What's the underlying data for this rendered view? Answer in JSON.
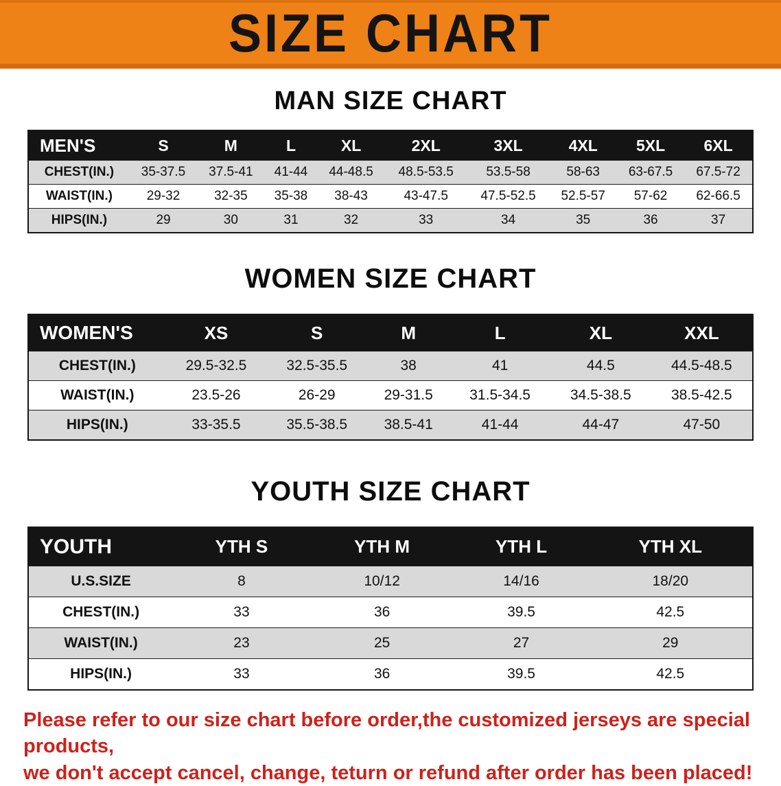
{
  "banner": {
    "title": "SIZE CHART",
    "background_color": "#ef8216",
    "text_color": "#141414"
  },
  "sections": [
    {
      "id": "men",
      "heading": "MAN SIZE CHART",
      "header": [
        "MEN'S",
        "S",
        "M",
        "L",
        "XL",
        "2XL",
        "3XL",
        "4XL",
        "5XL",
        "6XL"
      ],
      "rows": [
        [
          "CHEST(IN.)",
          "35-37.5",
          "37.5-41",
          "41-44",
          "44-48.5",
          "48.5-53.5",
          "53.5-58",
          "58-63",
          "63-67.5",
          "67.5-72"
        ],
        [
          "WAIST(IN.)",
          "29-32",
          "32-35",
          "35-38",
          "38-43",
          "43-47.5",
          "47.5-52.5",
          "52.5-57",
          "57-62",
          "62-66.5"
        ],
        [
          "HIPS(IN.)",
          "29",
          "30",
          "31",
          "32",
          "33",
          "34",
          "35",
          "36",
          "37"
        ]
      ]
    },
    {
      "id": "women",
      "heading": "WOMEN SIZE CHART",
      "header": [
        "WOMEN'S",
        "XS",
        "S",
        "M",
        "L",
        "XL",
        "XXL"
      ],
      "rows": [
        [
          "CHEST(IN.)",
          "29.5-32.5",
          "32.5-35.5",
          "38",
          "41",
          "44.5",
          "44.5-48.5"
        ],
        [
          "WAIST(IN.)",
          "23.5-26",
          "26-29",
          "29-31.5",
          "31.5-34.5",
          "34.5-38.5",
          "38.5-42.5"
        ],
        [
          "HIPS(IN.)",
          "33-35.5",
          "35.5-38.5",
          "38.5-41",
          "41-44",
          "44-47",
          "47-50"
        ]
      ]
    },
    {
      "id": "youth",
      "heading": "YOUTH SIZE CHART",
      "header": [
        "YOUTH",
        "YTH S",
        "YTH M",
        "YTH L",
        "YTH XL"
      ],
      "rows": [
        [
          "U.S.SIZE",
          "8",
          "10/12",
          "14/16",
          "18/20"
        ],
        [
          "CHEST(IN.)",
          "33",
          "36",
          "39.5",
          "42.5"
        ],
        [
          "WAIST(IN.)",
          "23",
          "25",
          "27",
          "29"
        ],
        [
          "HIPS(IN.)",
          "33",
          "36",
          "39.5",
          "42.5"
        ]
      ]
    }
  ],
  "footer": {
    "text_color": "#ce211a",
    "lines": [
      "Please refer to our size chart before order,the customized jerseys are special products,",
      "we don't accept cancel, change, teturn or refund after order has been placed!"
    ]
  }
}
